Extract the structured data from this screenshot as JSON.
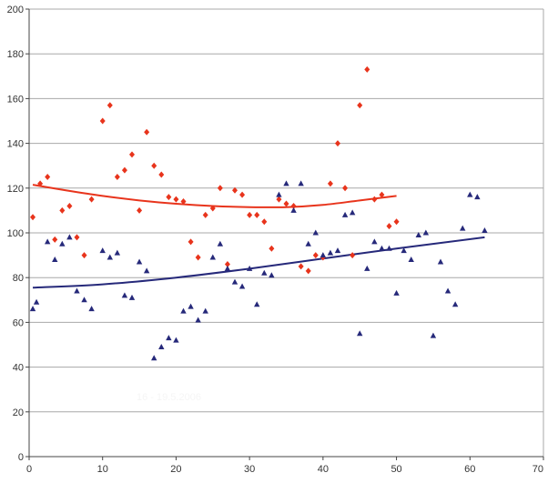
{
  "chart_data": {
    "type": "scatter",
    "xlim": [
      0,
      70
    ],
    "ylim": [
      0,
      200
    ],
    "x_ticks": [
      0,
      10,
      20,
      30,
      40,
      50,
      60,
      70
    ],
    "y_ticks": [
      0,
      20,
      40,
      60,
      80,
      100,
      120,
      140,
      160,
      180,
      200
    ],
    "grid": "horizontal",
    "legend": "none",
    "watermark_text": "16 - 19.5.2006",
    "series": [
      {
        "marker": "diamond",
        "color": "#e8341c",
        "points": [
          [
            0.5,
            107
          ],
          [
            1.5,
            122
          ],
          [
            2.5,
            125
          ],
          [
            3.5,
            97
          ],
          [
            4.5,
            110
          ],
          [
            5.5,
            112
          ],
          [
            6.5,
            98
          ],
          [
            7.5,
            90
          ],
          [
            8.5,
            115
          ],
          [
            10,
            150
          ],
          [
            11,
            157
          ],
          [
            12,
            125
          ],
          [
            13,
            128
          ],
          [
            14,
            135
          ],
          [
            15,
            110
          ],
          [
            16,
            145
          ],
          [
            17,
            130
          ],
          [
            18,
            126
          ],
          [
            19,
            116
          ],
          [
            20,
            115
          ],
          [
            21,
            114
          ],
          [
            22,
            96
          ],
          [
            23,
            89
          ],
          [
            24,
            108
          ],
          [
            25,
            111
          ],
          [
            26,
            120
          ],
          [
            27,
            86
          ],
          [
            28,
            119
          ],
          [
            29,
            117
          ],
          [
            30,
            108
          ],
          [
            31,
            108
          ],
          [
            32,
            105
          ],
          [
            33,
            93
          ],
          [
            34,
            115
          ],
          [
            35,
            113
          ],
          [
            36,
            112
          ],
          [
            37,
            85
          ],
          [
            38,
            83
          ],
          [
            39,
            90
          ],
          [
            40,
            89
          ],
          [
            41,
            122
          ],
          [
            42,
            140
          ],
          [
            43,
            120
          ],
          [
            44,
            90
          ],
          [
            45,
            157
          ],
          [
            46,
            173
          ],
          [
            47,
            115
          ],
          [
            48,
            117
          ],
          [
            49,
            103
          ],
          [
            50,
            105
          ]
        ],
        "trend": [
          [
            0.5,
            121.5
          ],
          [
            5,
            119
          ],
          [
            10,
            116.5
          ],
          [
            15,
            114.5
          ],
          [
            20,
            113
          ],
          [
            25,
            112
          ],
          [
            30,
            111.5
          ],
          [
            35,
            111.5
          ],
          [
            40,
            112.5
          ],
          [
            45,
            114.5
          ],
          [
            50,
            116.5
          ]
        ]
      },
      {
        "marker": "triangle",
        "color": "#26297a",
        "points": [
          [
            0.5,
            66
          ],
          [
            1,
            69
          ],
          [
            2.5,
            96
          ],
          [
            3.5,
            88
          ],
          [
            4.5,
            95
          ],
          [
            5.5,
            98
          ],
          [
            6.5,
            74
          ],
          [
            7.5,
            70
          ],
          [
            8.5,
            66
          ],
          [
            10,
            92
          ],
          [
            11,
            89
          ],
          [
            12,
            91
          ],
          [
            13,
            72
          ],
          [
            14,
            71
          ],
          [
            15,
            87
          ],
          [
            16,
            83
          ],
          [
            17,
            44
          ],
          [
            18,
            49
          ],
          [
            19,
            53
          ],
          [
            20,
            52
          ],
          [
            21,
            65
          ],
          [
            22,
            67
          ],
          [
            23,
            61
          ],
          [
            24,
            65
          ],
          [
            25,
            89
          ],
          [
            26,
            95
          ],
          [
            27,
            84
          ],
          [
            28,
            78
          ],
          [
            29,
            76
          ],
          [
            30,
            84
          ],
          [
            31,
            68
          ],
          [
            32,
            82
          ],
          [
            33,
            81
          ],
          [
            34,
            117
          ],
          [
            35,
            122
          ],
          [
            36,
            110
          ],
          [
            37,
            122
          ],
          [
            38,
            95
          ],
          [
            39,
            100
          ],
          [
            40,
            90
          ],
          [
            41,
            91
          ],
          [
            42,
            92
          ],
          [
            43,
            108
          ],
          [
            44,
            109
          ],
          [
            45,
            55
          ],
          [
            46,
            84
          ],
          [
            47,
            96
          ],
          [
            48,
            93
          ],
          [
            49,
            93
          ],
          [
            50,
            73
          ],
          [
            51,
            92
          ],
          [
            52,
            88
          ],
          [
            53,
            99
          ],
          [
            54,
            100
          ],
          [
            55,
            54
          ],
          [
            56,
            87
          ],
          [
            57,
            74
          ],
          [
            58,
            68
          ],
          [
            59,
            102
          ],
          [
            60,
            117
          ],
          [
            61,
            116
          ],
          [
            62,
            101
          ]
        ],
        "trend": [
          [
            0.5,
            75.5
          ],
          [
            10,
            77
          ],
          [
            20,
            80
          ],
          [
            30,
            84
          ],
          [
            40,
            88.5
          ],
          [
            50,
            93
          ],
          [
            62,
            98
          ]
        ]
      }
    ]
  }
}
